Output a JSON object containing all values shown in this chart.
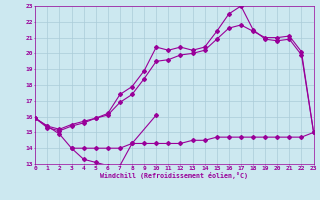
{
  "bg_color": "#cce8f0",
  "line_color": "#990099",
  "ylim": [
    13,
    23
  ],
  "xlim": [
    0,
    23
  ],
  "yticks": [
    13,
    14,
    15,
    16,
    17,
    18,
    19,
    20,
    21,
    22,
    23
  ],
  "xticks": [
    0,
    1,
    2,
    3,
    4,
    5,
    6,
    7,
    8,
    9,
    10,
    11,
    12,
    13,
    14,
    15,
    16,
    17,
    18,
    19,
    20,
    21,
    22,
    23
  ],
  "xlabel": "Windchill (Refroidissement éolien,°C)",
  "grid_color": "#aaccd8",
  "marker": "D",
  "marker_size": 2,
  "line_width": 0.8,
  "s1_x": [
    0,
    1,
    2,
    3,
    4,
    5,
    6,
    7,
    8,
    10
  ],
  "s1_y": [
    15.9,
    15.4,
    14.9,
    14.0,
    13.3,
    13.1,
    12.9,
    12.9,
    14.3,
    16.1
  ],
  "s2_x": [
    3,
    4,
    5,
    6,
    7,
    8,
    9,
    10,
    11,
    12,
    13,
    14,
    15,
    16,
    17,
    18,
    19,
    20,
    21,
    22,
    23
  ],
  "s2_y": [
    14.0,
    14.0,
    14.0,
    14.0,
    14.0,
    14.3,
    14.3,
    14.3,
    14.3,
    14.3,
    14.5,
    14.5,
    14.7,
    14.7,
    14.7,
    14.7,
    14.7,
    14.7,
    14.7,
    14.7,
    15.0
  ],
  "s3_x": [
    0,
    1,
    2,
    3,
    4,
    5,
    6,
    7,
    8,
    9,
    10,
    11,
    12,
    13,
    14,
    15,
    16,
    17,
    18,
    19,
    20,
    21,
    22,
    23
  ],
  "s3_y": [
    15.9,
    15.4,
    15.2,
    15.5,
    15.7,
    15.9,
    16.2,
    17.4,
    17.9,
    18.9,
    20.4,
    20.2,
    20.4,
    20.2,
    20.4,
    21.4,
    22.5,
    23.0,
    21.5,
    20.9,
    20.8,
    20.9,
    19.9,
    15.0
  ],
  "s4_x": [
    0,
    1,
    2,
    3,
    4,
    5,
    6,
    7,
    8,
    9,
    10,
    11,
    12,
    13,
    14,
    15,
    16,
    17,
    18,
    19,
    20,
    21,
    22,
    23
  ],
  "s4_y": [
    15.9,
    15.3,
    15.1,
    15.4,
    15.6,
    15.9,
    16.1,
    16.9,
    17.4,
    18.4,
    19.5,
    19.6,
    19.9,
    20.0,
    20.2,
    20.9,
    21.6,
    21.8,
    21.4,
    21.0,
    21.0,
    21.1,
    20.1,
    15.0
  ]
}
